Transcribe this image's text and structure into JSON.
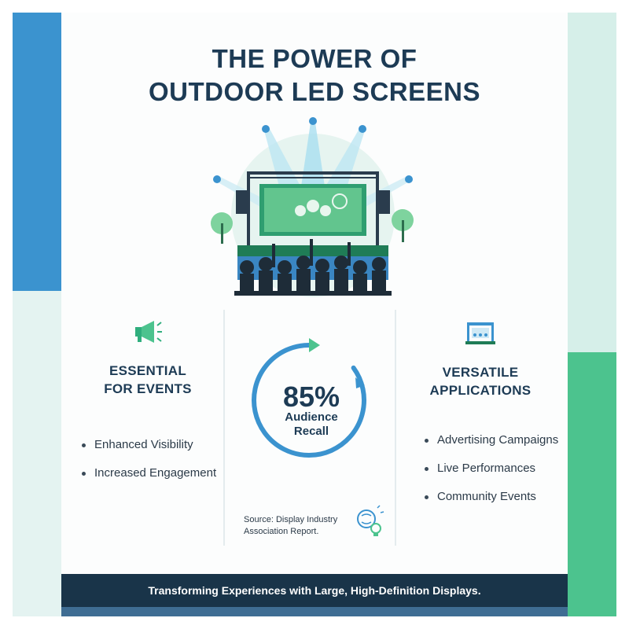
{
  "title": {
    "line1": "THE POWER OF",
    "line2": "OUTDOOR LED SCREENS"
  },
  "hero": {
    "icon": "concert-stage-with-led-screen-and-crowd-illustration"
  },
  "left_column": {
    "icon": "megaphone-icon",
    "heading_line1": "ESSENTIAL",
    "heading_line2": "FOR EVENTS",
    "bullets": [
      "Enhanced Visibility",
      "Increased Engagement"
    ]
  },
  "stat": {
    "value": "85%",
    "label_line1": "Audience",
    "label_line2": "Recall",
    "progress": 0.85,
    "source_line1": "Source: Display Industry",
    "source_line2": "Association Report.",
    "icon": "brain-lightbulb-icon"
  },
  "right_column": {
    "icon": "stage-icon",
    "heading_line1": "VERSATILE",
    "heading_line2": "APPLICATIONS",
    "bullets": [
      "Advertising Campaigns",
      "Live Performances",
      "Community Events"
    ]
  },
  "footer": {
    "text": "Transforming Experiences with Large, High-Definition Displays."
  },
  "colors": {
    "navy": "#1d3b55",
    "blue": "#3b93cf",
    "green": "#4cc38e",
    "mint": "#d6efe9",
    "footer": "#193449"
  }
}
